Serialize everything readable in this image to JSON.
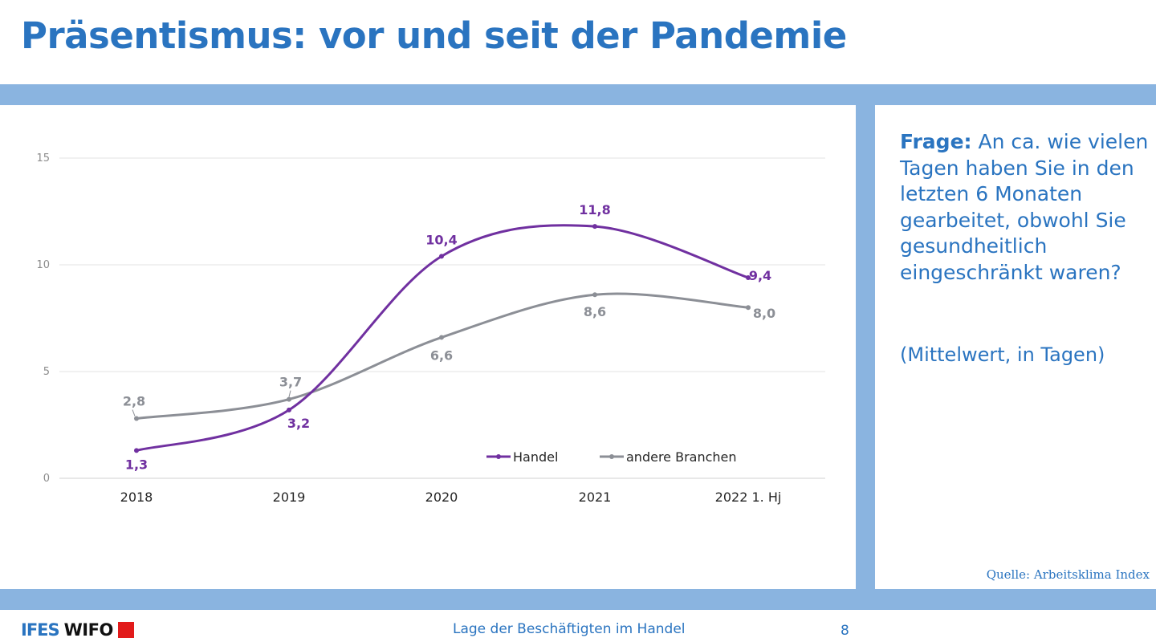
{
  "slide": {
    "title": "Präsentismus: vor und seit der Pandemie",
    "question_label": "Frage:",
    "question_text": " An ca. wie vielen Tagen haben Sie in den letzten 6 Monaten gearbeitet, obwohl Sie gesundheitlich eingeschränkt waren?",
    "note": "(Mittelwert, in Tagen)",
    "source": "Quelle: Arbeitsklima Index",
    "footer_text": "Lage der Beschäftigten im Handel",
    "page_number": "8",
    "logo_left": "IFES",
    "logo_right": "WIFO"
  },
  "colors": {
    "title": "#2a74c0",
    "band": "#8ab4e0",
    "logo_square": "#e21b1b"
  },
  "chart_data": {
    "type": "line",
    "title": "",
    "xlabel": "",
    "ylabel": "",
    "categories": [
      "2018",
      "2019",
      "2020",
      "2021",
      "2022 1. Hj"
    ],
    "ylim": [
      0,
      15
    ],
    "yticks": [
      "0",
      "5",
      "10",
      "15"
    ],
    "grid": true,
    "smooth": true,
    "legend_position": "bottom-right",
    "series": [
      {
        "name": "Handel",
        "color": "#7030a0",
        "values": [
          1.3,
          3.2,
          10.4,
          11.8,
          9.4
        ],
        "labels": [
          "1,3",
          "3,2",
          "10,4",
          "11,8",
          "9,4"
        ]
      },
      {
        "name": "andere Branchen",
        "color": "#8c8f96",
        "values": [
          2.8,
          3.7,
          6.6,
          8.6,
          8.0
        ],
        "labels": [
          "2,8",
          "3,7",
          "6,6",
          "8,6",
          "8,0"
        ]
      }
    ]
  }
}
